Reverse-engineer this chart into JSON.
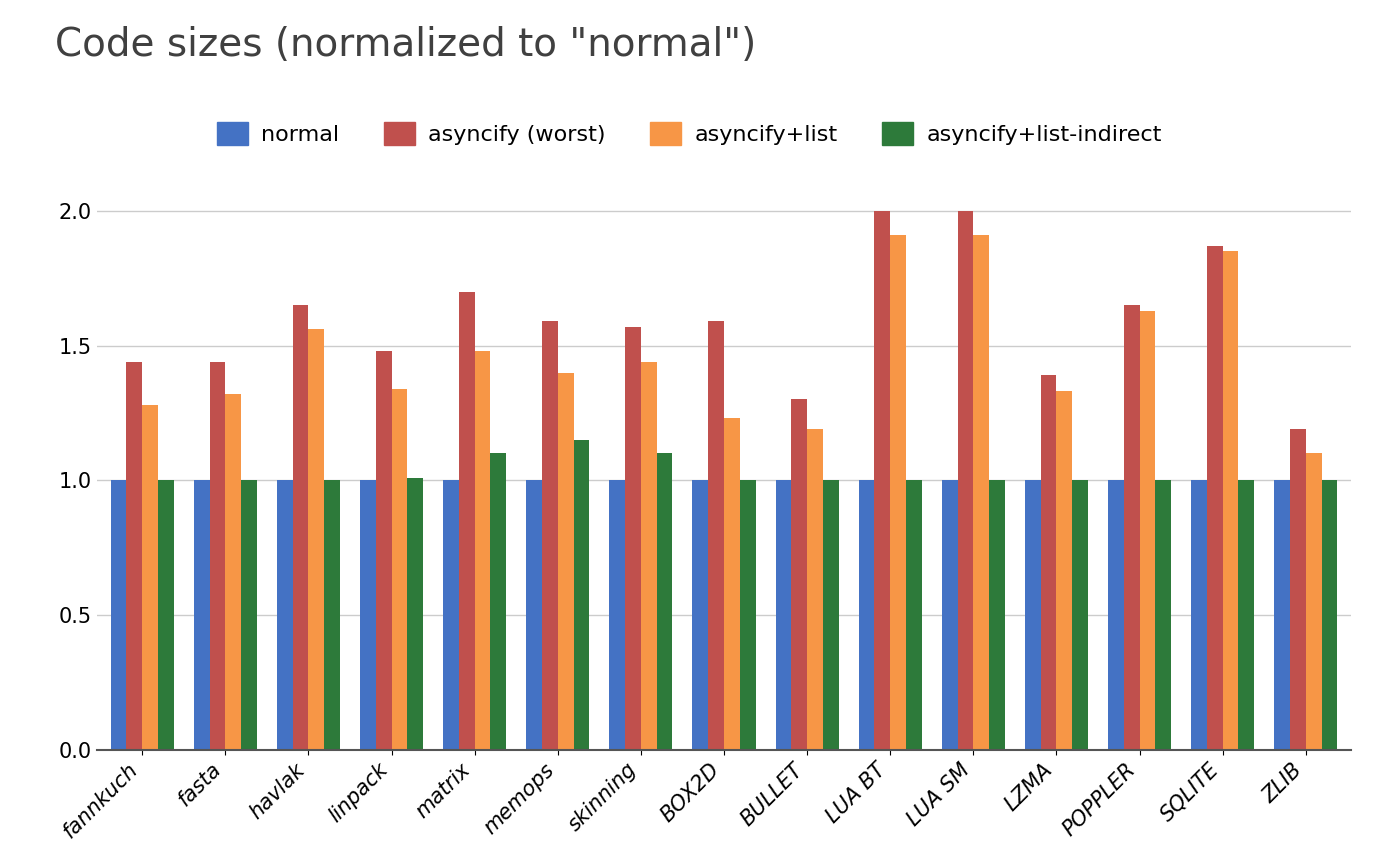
{
  "title": "Code sizes (normalized to \"normal\")",
  "categories": [
    "fannkuch",
    "fasta",
    "havlak",
    "linpack",
    "matrix",
    "memops",
    "skinning",
    "BOX2D",
    "BULLET",
    "LUA BT",
    "LUA SM",
    "LZMA",
    "POPPLER",
    "SQLITE",
    "ZLIB"
  ],
  "series": {
    "normal": [
      1.0,
      1.0,
      1.0,
      1.0,
      1.0,
      1.0,
      1.0,
      1.0,
      1.0,
      1.0,
      1.0,
      1.0,
      1.0,
      1.0,
      1.0
    ],
    "asyncify (worst)": [
      1.44,
      1.44,
      1.65,
      1.48,
      1.7,
      1.59,
      1.57,
      1.59,
      1.3,
      2.0,
      2.0,
      1.39,
      1.65,
      1.87,
      1.19
    ],
    "asyncify+list": [
      1.28,
      1.32,
      1.56,
      1.34,
      1.48,
      1.4,
      1.44,
      1.23,
      1.19,
      1.91,
      1.91,
      1.33,
      1.63,
      1.85,
      1.1
    ],
    "asyncify+list-indirect": [
      1.0,
      1.0,
      1.0,
      1.01,
      1.1,
      1.15,
      1.1,
      1.0,
      1.0,
      1.0,
      1.0,
      1.0,
      1.0,
      1.0,
      1.0
    ]
  },
  "colors": {
    "normal": "#4472C4",
    "asyncify (worst)": "#C0504D",
    "asyncify+list": "#F79646",
    "asyncify+list-indirect": "#2D7A3A"
  },
  "legend_labels": [
    "normal",
    "asyncify (worst)",
    "asyncify+list",
    "asyncify+list-indirect"
  ],
  "ylim": [
    0,
    2.15
  ],
  "yticks": [
    0,
    0.5,
    1.0,
    1.5,
    2.0
  ],
  "background_color": "#ffffff",
  "grid_color": "#cccccc",
  "title_fontsize": 28,
  "tick_fontsize": 15,
  "legend_fontsize": 16,
  "bar_width": 0.19
}
